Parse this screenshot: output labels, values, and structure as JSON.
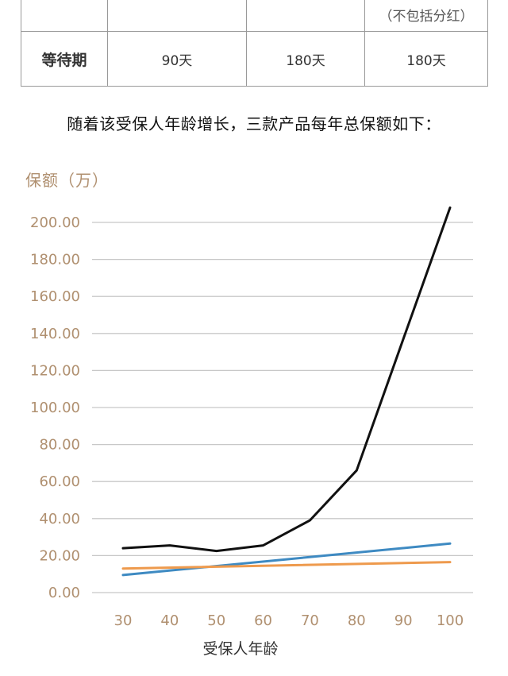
{
  "table": {
    "clip_row": {
      "col1": "",
      "col2": "",
      "col3": "",
      "col4_note": "（不包括分红）"
    },
    "waiting_row": {
      "label": "等待期",
      "values": [
        "90天",
        "180天",
        "180天"
      ]
    }
  },
  "caption": "随着该受保人年龄增长，三款产品每年总保额如下：",
  "chart_data": {
    "type": "line",
    "ylabel": "保额（万）",
    "xlabel": "受保人年龄",
    "ylim": [
      0,
      200
    ],
    "y_ticks": [
      "0.00",
      "20.00",
      "40.00",
      "60.00",
      "80.00",
      "100.00",
      "120.00",
      "140.00",
      "160.00",
      "180.00",
      "200.00"
    ],
    "x_ticks": [
      "30",
      "40",
      "50",
      "60",
      "70",
      "80",
      "90",
      "100"
    ],
    "grid": true,
    "series": [
      {
        "color": "#111111",
        "x": [
          30,
          40,
          50,
          60,
          70,
          80,
          90,
          100
        ],
        "values": [
          24,
          25.5,
          22.5,
          25.5,
          39,
          66,
          137,
          208
        ]
      },
      {
        "color": "#3e8ac2",
        "x": [
          30,
          100
        ],
        "values": [
          9.5,
          26.5
        ]
      },
      {
        "color": "#ee9a4d",
        "x": [
          30,
          100
        ],
        "values": [
          13,
          16.5
        ]
      }
    ],
    "colors": {
      "axis_text": "#b09070",
      "grid": "#c8c8c8"
    }
  }
}
